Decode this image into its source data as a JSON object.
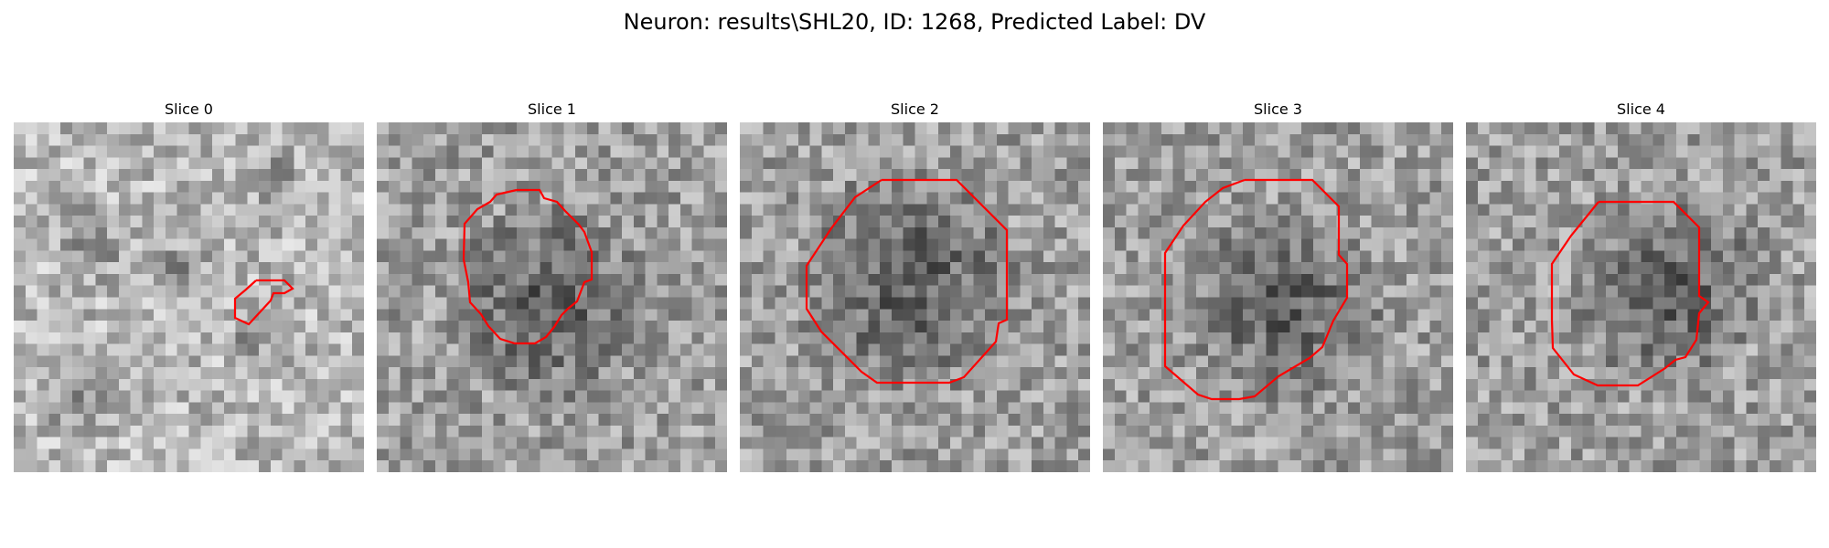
{
  "figure": {
    "title": "Neuron: results\\SHL20, ID: 1268, Predicted Label: DV",
    "contour_color": "#ff0000"
  },
  "slices": [
    {
      "title": "Slice 0",
      "has_roi": true,
      "brightness": "light",
      "blob": "none"
    },
    {
      "title": "Slice 1",
      "has_roi": true,
      "brightness": "mid",
      "blob": "dark-center"
    },
    {
      "title": "Slice 2",
      "has_roi": true,
      "brightness": "mid",
      "blob": "dark-center"
    },
    {
      "title": "Slice 3",
      "has_roi": true,
      "brightness": "mid",
      "blob": "dark-center"
    },
    {
      "title": "Slice 4",
      "has_roi": true,
      "brightness": "mid",
      "blob": "dark-center"
    }
  ]
}
